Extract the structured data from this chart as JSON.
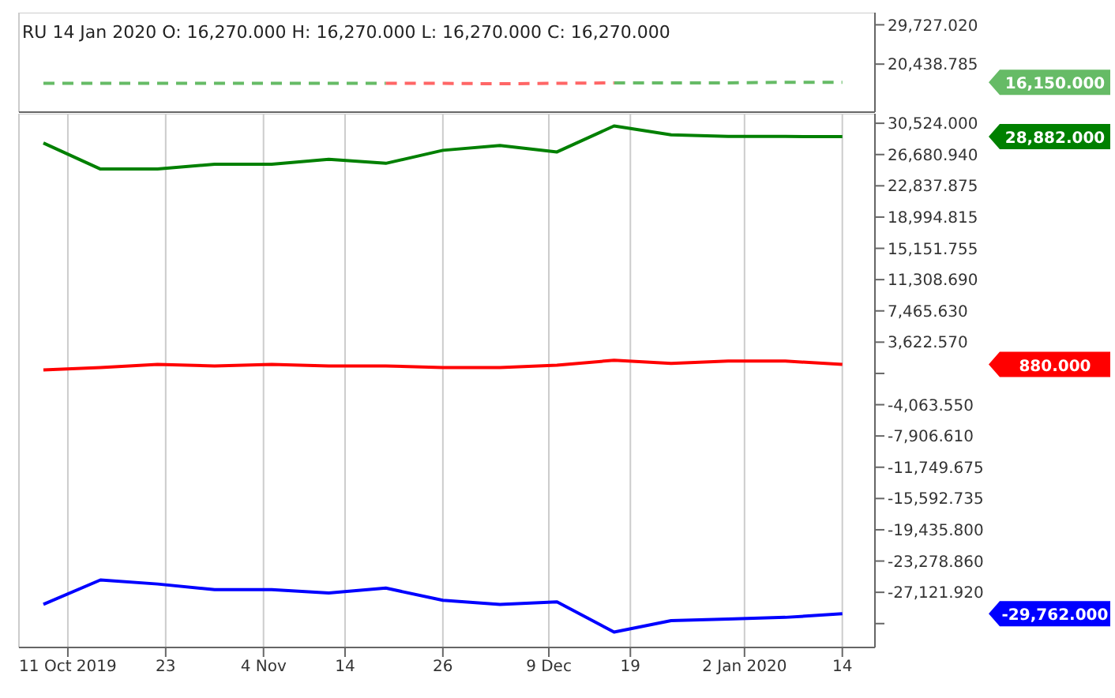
{
  "chart_data": [
    {
      "type": "line",
      "title": "RU   14 Jan 2020  O: 16,270.000  H: 16,270.000  L: 16,270.000  C: 16,270.000",
      "x": [
        "2019-10-08",
        "2019-10-15",
        "2019-10-22",
        "2019-10-29",
        "2019-11-05",
        "2019-11-12",
        "2019-11-19",
        "2019-11-26",
        "2019-12-03",
        "2019-12-10",
        "2019-12-17",
        "2019-12-24",
        "2019-12-31",
        "2020-01-07",
        "2020-01-14"
      ],
      "series": [
        {
          "color": "#66bb66",
          "values": [
            15900,
            15900,
            15900,
            15900,
            15900,
            15900,
            15900,
            null,
            null,
            null,
            16000,
            16000,
            16000,
            16150,
            16150
          ]
        },
        {
          "color": "#ff6666",
          "values": [
            null,
            null,
            null,
            null,
            null,
            null,
            15900,
            15900,
            15800,
            15900,
            16000,
            null,
            null,
            null,
            null
          ]
        }
      ],
      "line_style": "dashed",
      "marker": "none",
      "grid": true,
      "tick_labels": "y",
      "xlim": [
        "2019-10-05",
        "2020-01-18"
      ],
      "xticks": [
        {
          "value": "2019-10-11",
          "label": null
        },
        {
          "value": "2019-10-23",
          "label": null
        },
        {
          "value": "2019-11-04",
          "label": null
        },
        {
          "value": "2019-11-14",
          "label": null
        },
        {
          "value": "2019-11-26",
          "label": null
        },
        {
          "value": "2019-12-09",
          "label": null
        },
        {
          "value": "2019-12-19",
          "label": null
        },
        {
          "value": "2020-01-02",
          "label": null
        },
        {
          "value": "2020-01-14",
          "label": null
        }
      ],
      "ylim": [
        9100,
        32600
      ],
      "yticks": [
        {
          "value": 20438.785,
          "label": "20,438.785"
        },
        {
          "value": 29727.02,
          "label": "29,727.020"
        }
      ],
      "annotations": [
        "16,150.000"
      ]
    },
    {
      "type": "line",
      "x": [
        "2019-10-08",
        "2019-10-15",
        "2019-10-22",
        "2019-10-29",
        "2019-11-05",
        "2019-11-12",
        "2019-11-19",
        "2019-11-26",
        "2019-12-03",
        "2019-12-10",
        "2019-12-17",
        "2019-12-24",
        "2019-12-31",
        "2020-01-07",
        "2020-01-14"
      ],
      "series": [
        {
          "color": "#008000",
          "values": [
            28100,
            24900,
            24900,
            25500,
            25500,
            26100,
            25600,
            27200,
            27800,
            27000,
            30200,
            29100,
            28900,
            28900,
            28882
          ]
        },
        {
          "color": "#ff0000",
          "values": [
            200,
            500,
            900,
            700,
            900,
            700,
            700,
            500,
            500,
            800,
            1400,
            1000,
            1300,
            1300,
            880
          ]
        },
        {
          "color": "#0000ff",
          "values": [
            -28600,
            -25600,
            -26100,
            -26800,
            -26800,
            -27200,
            -26600,
            -28100,
            -28600,
            -28300,
            -32000,
            -30600,
            -30400,
            -30200,
            -29762
          ]
        }
      ],
      "line_style": "solid",
      "marker": "none",
      "grid": true,
      "xlim": [
        "2019-10-05",
        "2020-01-18"
      ],
      "xticks": [
        {
          "value": "2019-10-11",
          "label": "11 Oct 2019"
        },
        {
          "value": "2019-10-23",
          "label": "23"
        },
        {
          "value": "2019-11-04",
          "label": "4 Nov"
        },
        {
          "value": "2019-11-14",
          "label": "14"
        },
        {
          "value": "2019-11-26",
          "label": "26"
        },
        {
          "value": "2019-12-09",
          "label": "9 Dec"
        },
        {
          "value": "2019-12-19",
          "label": "19"
        },
        {
          "value": "2020-01-02",
          "label": "2 Jan 2020"
        },
        {
          "value": "2020-01-14",
          "label": "14"
        }
      ],
      "ylim": [
        -33900,
        31700
      ],
      "yticks": [
        {
          "value": 30524,
          "label": "30,524.000"
        },
        {
          "value": 26680.94,
          "label": "26,680.940"
        },
        {
          "value": 22837.875,
          "label": "22,837.875"
        },
        {
          "value": 18994.815,
          "label": "18,994.815"
        },
        {
          "value": 15151.755,
          "label": "15,151.755"
        },
        {
          "value": 11308.69,
          "label": "11,308.690"
        },
        {
          "value": 7465.63,
          "label": "7,465.630"
        },
        {
          "value": 3622.57,
          "label": "3,622.570"
        },
        {
          "value": -220.49,
          "label": null
        },
        {
          "value": -4063.55,
          "label": "-4,063.550"
        },
        {
          "value": -7906.61,
          "label": "-7,906.610"
        },
        {
          "value": -11749.675,
          "label": "-11,749.675"
        },
        {
          "value": -15592.735,
          "label": "-15,592.735"
        },
        {
          "value": -19435.8,
          "label": "-19,435.800"
        },
        {
          "value": -23278.86,
          "label": "-23,278.860"
        },
        {
          "value": -27121.92,
          "label": "-27,121.920"
        },
        {
          "value": -30964.985,
          "label": null
        }
      ],
      "annotations": [
        "28,882.000",
        "880.000",
        "-29,762.000"
      ]
    }
  ]
}
